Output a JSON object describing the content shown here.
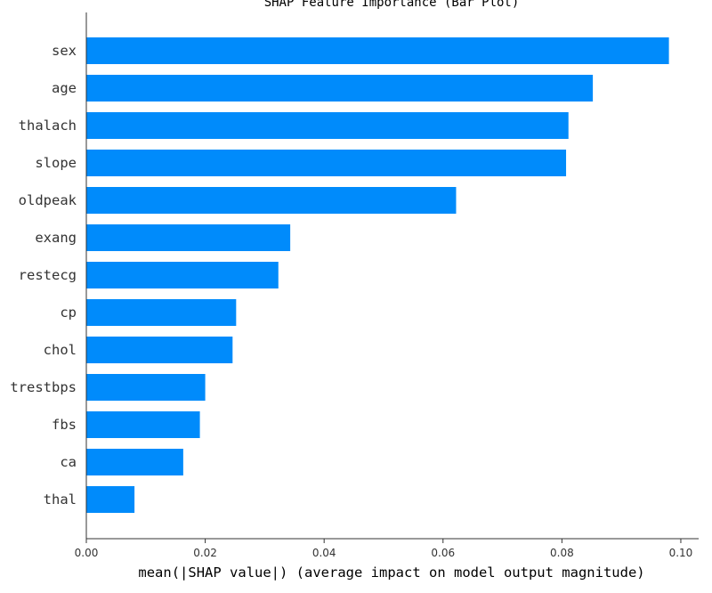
{
  "chart_data": {
    "type": "bar",
    "orientation": "horizontal",
    "title": "SHAP Feature Importance (Bar Plot)",
    "xlabel": "mean(|SHAP value|) (average impact on model output magnitude)",
    "ylabel": "",
    "categories": [
      "sex",
      "age",
      "thalach",
      "slope",
      "oldpeak",
      "exang",
      "restecg",
      "cp",
      "chol",
      "trestbps",
      "fbs",
      "ca",
      "thal"
    ],
    "values": [
      0.098,
      0.0852,
      0.0811,
      0.0807,
      0.0622,
      0.0343,
      0.0323,
      0.0252,
      0.0246,
      0.02,
      0.0191,
      0.0163,
      0.0081
    ],
    "xlim": [
      0.0,
      0.103
    ],
    "xticks": [
      "0.00",
      "0.02",
      "0.04",
      "0.06",
      "0.08",
      "0.10"
    ],
    "bar_color": "#008bfb",
    "grid": false
  }
}
